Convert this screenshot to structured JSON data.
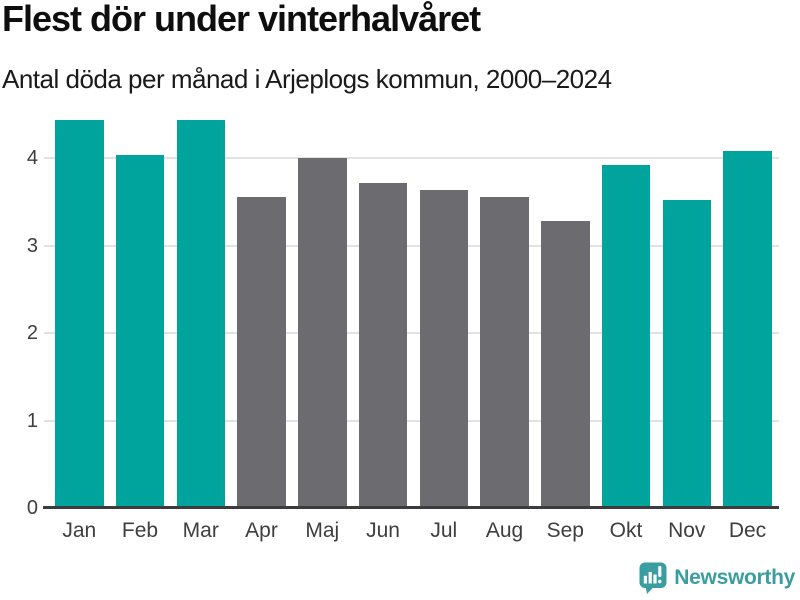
{
  "chart_data": {
    "type": "bar",
    "title": "Flest dör under vinterhalvåret",
    "subtitle": "Antal döda per månad i Arjeplogs kommun, 2000–2024",
    "categories": [
      "Jan",
      "Feb",
      "Mar",
      "Apr",
      "Maj",
      "Jun",
      "Jul",
      "Aug",
      "Sep",
      "Okt",
      "Nov",
      "Dec"
    ],
    "values": [
      4.44,
      4.04,
      4.44,
      3.56,
      4.0,
      3.72,
      3.64,
      3.56,
      3.28,
      3.92,
      3.52,
      4.08
    ],
    "bar_styles": [
      "highlight",
      "highlight",
      "highlight",
      "muted",
      "muted",
      "muted",
      "muted",
      "muted",
      "muted",
      "highlight",
      "highlight",
      "highlight"
    ],
    "highlighted_categories": [
      "Jan",
      "Feb",
      "Mar",
      "Okt",
      "Nov",
      "Dec"
    ],
    "colors": {
      "highlight": "#00A49C",
      "muted": "#6C6B70"
    },
    "xlabel": "",
    "ylabel": "",
    "yticks": [
      0,
      1,
      2,
      3,
      4
    ],
    "ylim": [
      0,
      4.53
    ],
    "grid": "horizontal",
    "legend": "none",
    "gridline_color": "#E2E2E2",
    "axis_color": "#3C3C3C",
    "tick_label_color": "#3E3E3E"
  },
  "footer": {
    "brand": "Newsworthy",
    "brand_color": "#3A9EA0",
    "icon": "newsworthy-speech-bubble-bar-chart-icon"
  }
}
